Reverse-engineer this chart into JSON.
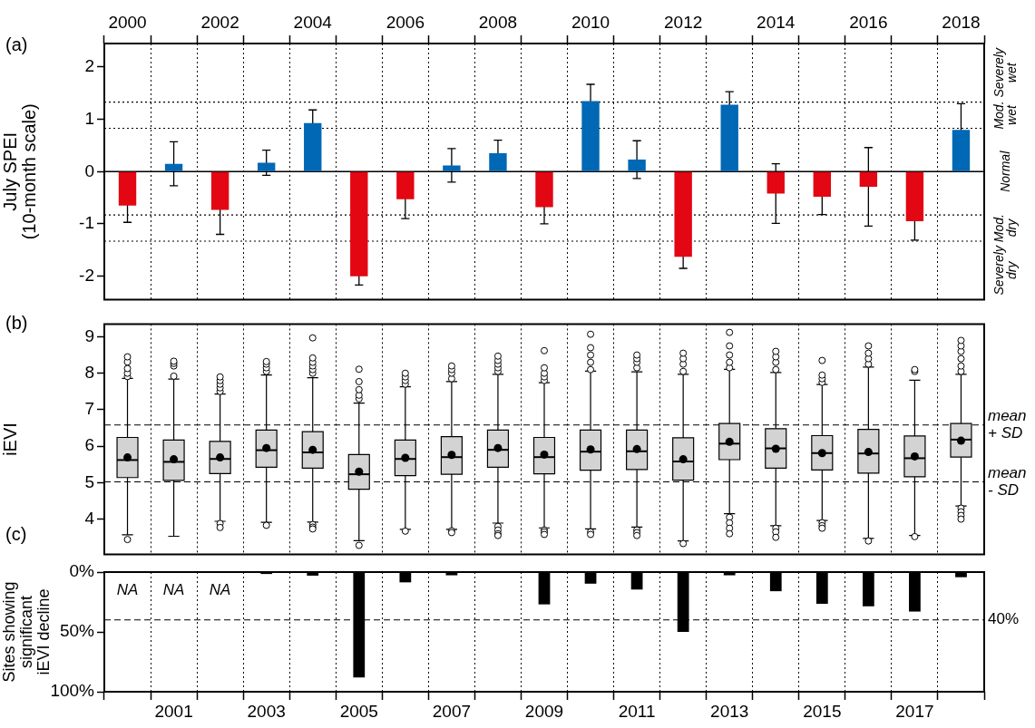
{
  "chart_data": [
    {
      "type": "bar",
      "title": "(a)",
      "ylabel": "July SPEI (10-month scale)",
      "categories": [
        "2000",
        null,
        "2002",
        null,
        "2004",
        null,
        "2006",
        null,
        "2008",
        null,
        "2010",
        null,
        "2012",
        null,
        "2014",
        null,
        "2016",
        null,
        "2018"
      ],
      "values": [
        -0.65,
        0.15,
        -0.73,
        0.17,
        0.93,
        -2.0,
        -0.53,
        0.12,
        0.35,
        -0.68,
        1.35,
        0.23,
        -1.63,
        1.28,
        -0.42,
        -0.48,
        -0.29,
        -0.95,
        0.8
      ],
      "colors": [
        "#e30613",
        "#0068b4",
        "#e30613",
        "#0068b4",
        "#0068b4",
        "#e30613",
        "#e30613",
        "#0068b4",
        "#0068b4",
        "#e30613",
        "#0068b4",
        "#0068b4",
        "#e30613",
        "#0068b4",
        "#e30613",
        "#e30613",
        "#e30613",
        "#e30613",
        "#0068b4"
      ],
      "errors": [
        0.32,
        0.42,
        0.47,
        0.24,
        0.25,
        0.17,
        0.37,
        0.32,
        0.25,
        0.32,
        0.32,
        0.36,
        0.22,
        0.25,
        0.57,
        0.34,
        0.75,
        0.36,
        0.5
      ],
      "ylim": [
        -2.45,
        2.45
      ],
      "yticks": [
        -2,
        -1,
        0,
        1,
        2
      ],
      "grid": "x",
      "ref_lines": [
        {
          "axis": "y",
          "value": 0,
          "line_style": "solid"
        },
        {
          "axis": "y",
          "value": 1.33,
          "line_style": "dotted"
        },
        {
          "axis": "y",
          "value": 0.83,
          "line_style": "dotted"
        },
        {
          "axis": "y",
          "value": -0.83,
          "line_style": "dotted"
        },
        {
          "axis": "y",
          "value": -1.33,
          "line_style": "dotted"
        }
      ],
      "annotations": [
        "Severely wet",
        "Mod. wet",
        "Normal",
        "Mod. dry",
        "Severely dry"
      ]
    },
    {
      "type": "box",
      "title": "(b)",
      "ylabel": "iEVI",
      "color": "#d3d3d3",
      "categories": [
        null,
        null,
        null,
        null,
        null,
        null,
        null,
        null,
        null,
        null,
        null,
        null,
        null,
        null,
        null,
        null,
        null,
        null,
        null
      ],
      "boxes": [
        {
          "low": 3.57,
          "q1": 5.14,
          "median": 5.62,
          "q3": 6.24,
          "high": 7.86,
          "mean": 5.69,
          "outliers": [
            3.44,
            7.91,
            8.0,
            8.13,
            8.31,
            8.45
          ]
        },
        {
          "low": 3.53,
          "q1": 5.06,
          "median": 5.57,
          "q3": 6.17,
          "high": 7.84,
          "mean": 5.64,
          "outliers": [
            7.92,
            8.2,
            8.27,
            8.33
          ]
        },
        {
          "low": 3.94,
          "q1": 5.25,
          "median": 5.65,
          "q3": 6.13,
          "high": 7.43,
          "mean": 5.69,
          "outliers": [
            3.88,
            3.77,
            7.5,
            7.6,
            7.7,
            7.8,
            7.9
          ]
        },
        {
          "low": 3.91,
          "q1": 5.42,
          "median": 5.89,
          "q3": 6.44,
          "high": 7.95,
          "mean": 5.95,
          "outliers": [
            3.83,
            8.05,
            8.15,
            8.25,
            8.32
          ]
        },
        {
          "low": 3.92,
          "q1": 5.4,
          "median": 5.83,
          "q3": 6.4,
          "high": 7.88,
          "mean": 5.9,
          "outliers": [
            3.85,
            3.78,
            3.73,
            8.0,
            8.1,
            8.2,
            8.3,
            8.42,
            8.97
          ]
        },
        {
          "low": 3.41,
          "q1": 4.82,
          "median": 5.23,
          "q3": 5.77,
          "high": 7.18,
          "mean": 5.3,
          "outliers": [
            3.28,
            7.3,
            7.4,
            7.55,
            7.77,
            8.11
          ]
        },
        {
          "low": 3.72,
          "q1": 5.19,
          "median": 5.65,
          "q3": 6.17,
          "high": 7.63,
          "mean": 5.68,
          "outliers": [
            3.67,
            7.7,
            7.8,
            7.9,
            8.0
          ]
        },
        {
          "low": 3.72,
          "q1": 5.23,
          "median": 5.7,
          "q3": 6.26,
          "high": 7.77,
          "mean": 5.76,
          "outliers": [
            3.68,
            3.63,
            7.85,
            8.0,
            8.1,
            8.2
          ]
        },
        {
          "low": 3.89,
          "q1": 5.42,
          "median": 5.9,
          "q3": 6.44,
          "high": 7.97,
          "mean": 5.95,
          "outliers": [
            3.8,
            3.7,
            3.6,
            3.55,
            8.05,
            8.15,
            8.25,
            8.35,
            8.47
          ]
        },
        {
          "low": 3.76,
          "q1": 5.24,
          "median": 5.7,
          "q3": 6.24,
          "high": 7.74,
          "mean": 5.77,
          "outliers": [
            3.7,
            3.65,
            3.58,
            7.8,
            7.9,
            8.0,
            8.15,
            8.62
          ]
        },
        {
          "low": 3.73,
          "q1": 5.34,
          "median": 5.85,
          "q3": 6.44,
          "high": 8.06,
          "mean": 5.91,
          "outliers": [
            3.65,
            3.58,
            8.1,
            8.3,
            8.5,
            8.7,
            9.07
          ]
        },
        {
          "low": 3.78,
          "q1": 5.36,
          "median": 5.86,
          "q3": 6.44,
          "high": 8.04,
          "mean": 5.92,
          "outliers": [
            3.7,
            3.63,
            3.55,
            8.15,
            8.3,
            8.4,
            8.5
          ]
        },
        {
          "low": 3.4,
          "q1": 5.07,
          "median": 5.58,
          "q3": 6.23,
          "high": 7.97,
          "mean": 5.64,
          "outliers": [
            3.33,
            8.05,
            8.25,
            8.4,
            8.55
          ]
        },
        {
          "low": 4.15,
          "q1": 5.63,
          "median": 6.07,
          "q3": 6.62,
          "high": 8.11,
          "mean": 6.12,
          "outliers": [
            4.05,
            3.9,
            3.75,
            3.6,
            8.15,
            8.3,
            8.5,
            8.75,
            9.12
          ]
        },
        {
          "low": 3.82,
          "q1": 5.4,
          "median": 5.94,
          "q3": 6.48,
          "high": 8.02,
          "mean": 5.93,
          "outliers": [
            3.75,
            3.65,
            3.5,
            8.1,
            8.3,
            8.45,
            8.6
          ]
        },
        {
          "low": 3.96,
          "q1": 5.35,
          "median": 5.81,
          "q3": 6.29,
          "high": 7.69,
          "mean": 5.81,
          "outliers": [
            3.9,
            3.82,
            3.75,
            7.75,
            7.85,
            7.95,
            8.35
          ]
        },
        {
          "low": 3.47,
          "q1": 5.26,
          "median": 5.8,
          "q3": 6.46,
          "high": 8.17,
          "mean": 5.84,
          "outliers": [
            3.4,
            8.25,
            8.4,
            8.55,
            8.75
          ]
        },
        {
          "low": 3.55,
          "q1": 5.16,
          "median": 5.67,
          "q3": 6.28,
          "high": 7.81,
          "mean": 5.72,
          "outliers": [
            3.52,
            8.05,
            8.1
          ]
        },
        {
          "low": 4.36,
          "q1": 5.7,
          "median": 6.18,
          "q3": 6.62,
          "high": 7.97,
          "mean": 6.15,
          "outliers": [
            4.3,
            4.2,
            4.1,
            4.0,
            8.05,
            8.2,
            8.4,
            8.6,
            8.75,
            8.9
          ]
        }
      ],
      "ylim": [
        3.03,
        9.35
      ],
      "yticks": [
        4,
        5,
        6,
        7,
        8,
        9
      ],
      "grid": "x",
      "tick_labels": "y",
      "ref_lines": [
        {
          "axis": "y",
          "value": 6.58,
          "label": "mean + SD",
          "line_style": "dashed"
        },
        {
          "axis": "y",
          "value": 5.02,
          "label": "mean - SD",
          "line_style": "dashed"
        }
      ]
    },
    {
      "type": "bar",
      "title": "(c)",
      "ylabel": "Sites showing significant iEVI decline",
      "categories": [
        null,
        "2001",
        null,
        "2003",
        null,
        "2005",
        null,
        "2007",
        null,
        "2009",
        null,
        "2011",
        null,
        "2013",
        null,
        "2015",
        null,
        "2017",
        null
      ],
      "values": [
        null,
        null,
        null,
        1.6,
        3,
        88,
        8.6,
        2.7,
        0,
        27,
        9.7,
        14.6,
        50,
        2.7,
        16,
        26.5,
        28.6,
        33,
        4.3
      ],
      "value_labels": [
        "NA",
        "NA",
        "NA",
        null,
        null,
        null,
        null,
        null,
        null,
        null,
        null,
        null,
        null,
        null,
        null,
        null,
        null,
        null,
        null
      ],
      "color": "#000000",
      "ylim": [
        100,
        0
      ],
      "yticks": [
        {
          "value": 0,
          "label": "0%"
        },
        {
          "value": 50,
          "label": "50%"
        },
        {
          "value": 100,
          "label": "100%"
        }
      ],
      "grid": "x",
      "ref_lines": [
        {
          "axis": "y",
          "value": 40,
          "label": "40%",
          "line_style": "dashed"
        }
      ]
    }
  ]
}
